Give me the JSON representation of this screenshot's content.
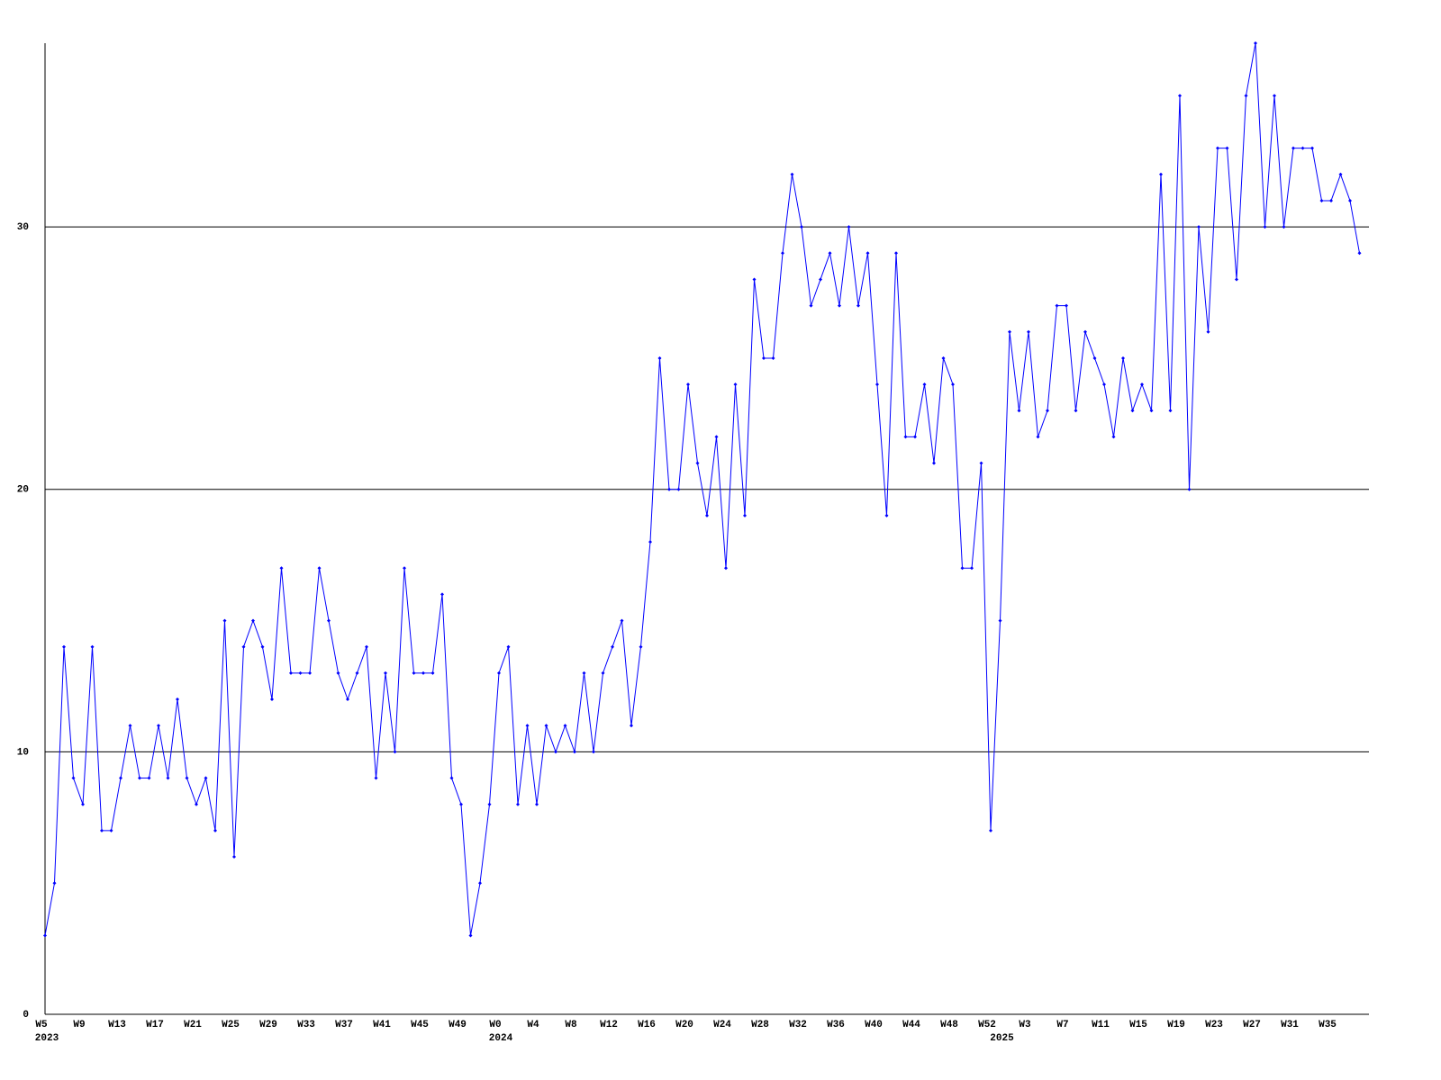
{
  "chart_data": {
    "type": "line",
    "categories": [
      "W5",
      null,
      null,
      null,
      "W9",
      null,
      null,
      null,
      "W13",
      null,
      null,
      null,
      "W17",
      null,
      null,
      null,
      "W21",
      null,
      null,
      null,
      "W25",
      null,
      null,
      null,
      "W29",
      null,
      null,
      null,
      "W33",
      null,
      null,
      null,
      "W37",
      null,
      null,
      null,
      "W41",
      null,
      null,
      null,
      "W45",
      null,
      null,
      null,
      "W49",
      null,
      null,
      null,
      "W0",
      null,
      null,
      null,
      "W4",
      null,
      null,
      null,
      "W8",
      null,
      null,
      null,
      "W12",
      null,
      null,
      null,
      "W16",
      null,
      null,
      null,
      "W20",
      null,
      null,
      null,
      "W24",
      null,
      null,
      null,
      "W28",
      null,
      null,
      null,
      "W32",
      null,
      null,
      null,
      "W36",
      null,
      null,
      null,
      "W40",
      null,
      null,
      null,
      "W44",
      null,
      null,
      null,
      "W48",
      null,
      null,
      null,
      "W52",
      null,
      null,
      null,
      "W3",
      null,
      null,
      null,
      "W7",
      null,
      null,
      null,
      "W11",
      null,
      null,
      null,
      "W15",
      null,
      null,
      null,
      "W19",
      null,
      null,
      null,
      "W23",
      null,
      null,
      null,
      "W27",
      null,
      null,
      null,
      "W31",
      null,
      null,
      null,
      "W35",
      null,
      null,
      null
    ],
    "category_groups": [
      "2023",
      null,
      null,
      null,
      null,
      null,
      null,
      null,
      null,
      null,
      null,
      null,
      null,
      null,
      null,
      null,
      null,
      null,
      null,
      null,
      null,
      null,
      null,
      null,
      null,
      null,
      null,
      null,
      null,
      null,
      null,
      null,
      null,
      null,
      null,
      null,
      null,
      null,
      null,
      null,
      null,
      null,
      null,
      null,
      null,
      null,
      null,
      null,
      "2024",
      null,
      null,
      null,
      null,
      null,
      null,
      null,
      null,
      null,
      null,
      null,
      null,
      null,
      null,
      null,
      null,
      null,
      null,
      null,
      null,
      null,
      null,
      null,
      null,
      null,
      null,
      null,
      null,
      null,
      null,
      null,
      null,
      null,
      null,
      null,
      null,
      null,
      null,
      null,
      null,
      null,
      null,
      null,
      null,
      null,
      null,
      null,
      null,
      null,
      null,
      null,
      null,
      "2025",
      null,
      null,
      null,
      null,
      null,
      null,
      null,
      null,
      null,
      null,
      null,
      null,
      null,
      null,
      null,
      null,
      null,
      null,
      null,
      null,
      null,
      null,
      null,
      null,
      null,
      null,
      null,
      null,
      null,
      null,
      null,
      null,
      null,
      null,
      null,
      null,
      null
    ],
    "values": [
      3,
      5,
      14,
      9,
      8,
      14,
      7,
      7,
      9,
      11,
      9,
      9,
      11,
      9,
      12,
      9,
      8,
      9,
      7,
      15,
      6,
      14,
      15,
      14,
      12,
      17,
      13,
      13,
      13,
      17,
      15,
      13,
      12,
      13,
      14,
      9,
      13,
      10,
      17,
      13,
      13,
      13,
      16,
      9,
      8,
      3,
      5,
      8,
      13,
      14,
      8,
      11,
      8,
      11,
      10,
      11,
      10,
      13,
      10,
      13,
      14,
      15,
      11,
      14,
      18,
      25,
      20,
      20,
      24,
      21,
      19,
      22,
      17,
      24,
      19,
      28,
      25,
      25,
      29,
      32,
      30,
      27,
      28,
      29,
      27,
      30,
      27,
      29,
      24,
      19,
      29,
      22,
      22,
      24,
      21,
      25,
      24,
      17,
      17,
      21,
      7,
      15,
      26,
      23,
      26,
      22,
      23,
      27,
      27,
      23,
      26,
      25,
      24,
      22,
      25,
      23,
      24,
      23,
      32,
      23,
      35,
      20,
      30,
      26,
      33,
      33,
      28,
      35,
      37,
      30,
      35,
      30,
      33,
      33,
      33,
      31,
      31,
      32,
      31,
      29
    ],
    "color": "#0000ff",
    "ylim": [
      0,
      37
    ],
    "yticks": [
      0,
      10,
      20,
      30
    ],
    "grid": true
  }
}
